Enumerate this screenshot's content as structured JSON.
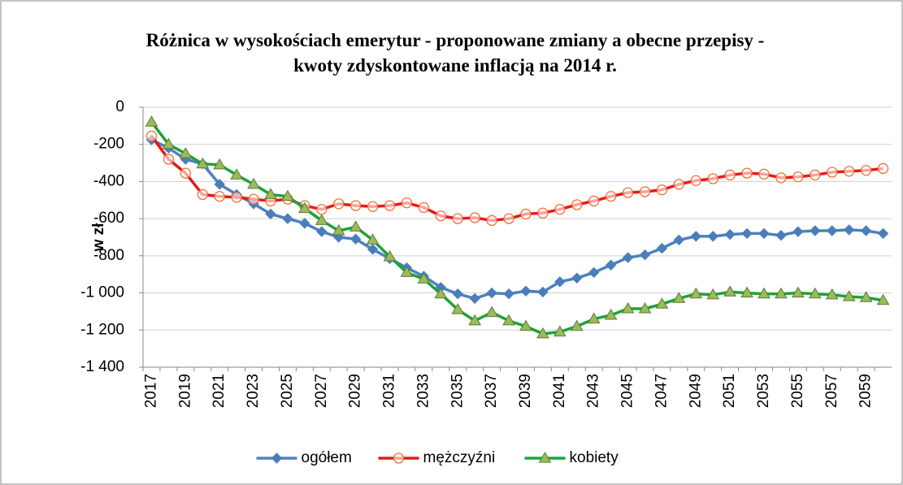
{
  "chart_data": {
    "type": "line",
    "title": "Różnica w wysokościach emerytur - proponowane zmiany a obecne przepisy - kwoty zdyskontowane inflacją na 2014 r.",
    "y_label": "w zł",
    "categories": [
      "2017",
      null,
      "2019",
      null,
      "2021",
      null,
      "2023",
      null,
      "2025",
      null,
      "2027",
      null,
      "2029",
      null,
      "2031",
      null,
      "2033",
      null,
      "2035",
      null,
      "2037",
      null,
      "2039",
      null,
      "2041",
      null,
      "2043",
      null,
      "2045",
      null,
      "2047",
      null,
      "2049",
      null,
      "2051",
      null,
      "2053",
      null,
      "2055",
      null,
      "2057",
      null,
      "2059",
      null
    ],
    "series": [
      {
        "name": "ogółem",
        "color": "#4f81bd",
        "marker": "diamond",
        "marker_color": "#4a7ebb",
        "values": [
          -175,
          -220,
          -280,
          -305,
          -415,
          -470,
          -520,
          -575,
          -600,
          -625,
          -670,
          -700,
          -710,
          -765,
          -815,
          -865,
          -910,
          -970,
          -1005,
          -1030,
          -1000,
          -1005,
          -990,
          -995,
          -940,
          -920,
          -890,
          -850,
          -810,
          -795,
          -760,
          -715,
          -695,
          -695,
          -685,
          -680,
          -680,
          -690,
          -670,
          -665,
          -665,
          -660,
          -665,
          -680
        ]
      },
      {
        "name": "mężczyźni",
        "color": "#e41a1c",
        "marker": "circle",
        "marker_color": "#f26f2c",
        "values": [
          -155,
          -280,
          -355,
          -470,
          -480,
          -485,
          -495,
          -505,
          -495,
          -530,
          -550,
          -520,
          -530,
          -535,
          -530,
          -515,
          -540,
          -585,
          -600,
          -595,
          -610,
          -600,
          -575,
          -570,
          -550,
          -525,
          -505,
          -480,
          -460,
          -455,
          -445,
          -415,
          -395,
          -385,
          -365,
          -355,
          -360,
          -380,
          -375,
          -365,
          -350,
          -345,
          -340,
          -330
        ]
      },
      {
        "name": "kobiety",
        "color": "#1ca33a",
        "marker": "triangle",
        "marker_color": "#9bbb59",
        "values": [
          -80,
          -200,
          -250,
          -305,
          -310,
          -365,
          -415,
          -470,
          -480,
          -545,
          -610,
          -665,
          -645,
          -715,
          -805,
          -890,
          -925,
          -1005,
          -1090,
          -1150,
          -1105,
          -1150,
          -1180,
          -1220,
          -1210,
          -1180,
          -1140,
          -1120,
          -1085,
          -1085,
          -1060,
          -1030,
          -1005,
          -1010,
          -995,
          -1000,
          -1005,
          -1005,
          -1000,
          -1005,
          -1010,
          -1020,
          -1025,
          -1040
        ]
      }
    ],
    "ylim": [
      -1400,
      0
    ],
    "yticks": [
      {
        "value": -1400,
        "label": "-1 400"
      },
      {
        "value": -1200,
        "label": "-1 200"
      },
      {
        "value": -1000,
        "label": "-1 000"
      },
      -800,
      -600,
      -400,
      -200,
      0
    ],
    "grid": true,
    "legend": "bottom"
  }
}
